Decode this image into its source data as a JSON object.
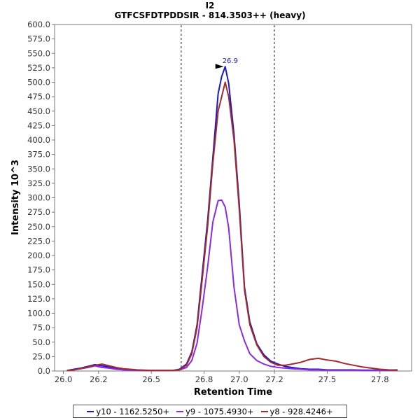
{
  "chart_data": {
    "type": "line",
    "title": "I2",
    "subtitle": "GTFCSFDTPDDSIR - 814.3503++ (heavy)",
    "xlabel": "Retention Time",
    "ylabel": "Intensity 10^3",
    "xlim": [
      25.95,
      27.98
    ],
    "ylim": [
      0,
      600
    ],
    "x_ticks": [
      {
        "value": 26.0,
        "label": "26.0"
      },
      {
        "value": 26.2,
        "label": "26.2"
      },
      {
        "value": 26.5,
        "label": "26.5"
      },
      {
        "value": 26.8,
        "label": "26.8"
      },
      {
        "value": 27.0,
        "label": "27.0"
      },
      {
        "value": 27.2,
        "label": "27.2"
      },
      {
        "value": 27.5,
        "label": "27.5"
      },
      {
        "value": 27.8,
        "label": "27.8"
      }
    ],
    "y_ticks": [
      {
        "value": 0,
        "label": "0.0"
      },
      {
        "value": 25,
        "label": "25.0"
      },
      {
        "value": 50,
        "label": "50.0"
      },
      {
        "value": 75,
        "label": "75.0"
      },
      {
        "value": 100,
        "label": "100.0"
      },
      {
        "value": 125,
        "label": "125.0"
      },
      {
        "value": 150,
        "label": "150.0"
      },
      {
        "value": 175,
        "label": "175.0"
      },
      {
        "value": 200,
        "label": "200.0"
      },
      {
        "value": 225,
        "label": "225.0"
      },
      {
        "value": 250,
        "label": "250.0"
      },
      {
        "value": 275,
        "label": "275.0"
      },
      {
        "value": 300,
        "label": "300.0"
      },
      {
        "value": 325,
        "label": "325.0"
      },
      {
        "value": 350,
        "label": "350.0"
      },
      {
        "value": 375,
        "label": "375.0"
      },
      {
        "value": 400,
        "label": "400.0"
      },
      {
        "value": 425,
        "label": "425.0"
      },
      {
        "value": 450,
        "label": "450.0"
      },
      {
        "value": 475,
        "label": "475.0"
      },
      {
        "value": 500,
        "label": "500.0"
      },
      {
        "value": 525,
        "label": "525.0"
      },
      {
        "value": 550,
        "label": "550.0"
      },
      {
        "value": 575,
        "label": "575.0"
      },
      {
        "value": 600,
        "label": "600.0"
      }
    ],
    "grid": false,
    "legend_position": "bottom",
    "boundaries": [
      26.67,
      27.2
    ],
    "peak_annotation": {
      "x": 26.92,
      "y": 527,
      "label": "26.9"
    },
    "series": [
      {
        "name": "y10 - 1162.5250+",
        "color": "#1818c8",
        "x": [
          26.02,
          26.06,
          26.1,
          26.14,
          26.18,
          26.22,
          26.26,
          26.3,
          26.34,
          26.38,
          26.42,
          26.46,
          26.5,
          26.54,
          26.58,
          26.62,
          26.66,
          26.7,
          26.73,
          26.76,
          26.79,
          26.82,
          26.85,
          26.88,
          26.9,
          26.92,
          26.94,
          26.97,
          27.0,
          27.03,
          27.06,
          27.1,
          27.14,
          27.18,
          27.22,
          27.26,
          27.3,
          27.35,
          27.4,
          27.45,
          27.5,
          27.55,
          27.6,
          27.65,
          27.7,
          27.75,
          27.8,
          27.85,
          27.9
        ],
        "y": [
          1,
          3,
          5,
          8,
          11,
          9,
          7,
          5,
          3,
          2,
          1.5,
          1,
          1,
          1,
          1,
          1,
          3,
          12,
          33,
          80,
          170,
          260,
          370,
          480,
          510,
          527,
          498,
          410,
          290,
          145,
          85,
          47,
          28,
          17,
          12,
          8,
          6,
          4,
          3,
          3,
          2,
          2,
          2,
          2,
          1.5,
          1.5,
          1.5,
          1.5,
          2
        ]
      },
      {
        "name": "y9 - 1075.4930+",
        "color": "#8a2be2",
        "x": [
          26.02,
          26.06,
          26.1,
          26.14,
          26.18,
          26.22,
          26.26,
          26.3,
          26.34,
          26.38,
          26.42,
          26.46,
          26.5,
          26.54,
          26.58,
          26.62,
          26.66,
          26.7,
          26.73,
          26.76,
          26.79,
          26.82,
          26.85,
          26.88,
          26.9,
          26.92,
          26.94,
          26.97,
          27.0,
          27.03,
          27.06,
          27.1,
          27.14,
          27.18,
          27.22,
          27.26,
          27.3,
          27.35,
          27.4,
          27.45,
          27.5,
          27.55,
          27.6,
          27.65,
          27.7,
          27.75,
          27.8,
          27.85,
          27.9
        ],
        "y": [
          1,
          2,
          4,
          6,
          9,
          6,
          5,
          3,
          2,
          1.5,
          1,
          1,
          1,
          1,
          1,
          1,
          2,
          6,
          18,
          48,
          110,
          180,
          258,
          295,
          296,
          284,
          248,
          145,
          80,
          52,
          30,
          18,
          12,
          8,
          6,
          5,
          4,
          3,
          2,
          2,
          1.5,
          1.5,
          1.5,
          1.5,
          1,
          1,
          1,
          1,
          1
        ]
      },
      {
        "name": "y8 - 928.4246+",
        "color": "#a52a2a",
        "x": [
          26.02,
          26.06,
          26.1,
          26.14,
          26.18,
          26.22,
          26.26,
          26.3,
          26.34,
          26.38,
          26.42,
          26.46,
          26.5,
          26.54,
          26.58,
          26.62,
          26.66,
          26.7,
          26.73,
          26.76,
          26.79,
          26.82,
          26.85,
          26.88,
          26.9,
          26.92,
          26.94,
          26.97,
          27.0,
          27.03,
          27.06,
          27.1,
          27.14,
          27.18,
          27.22,
          27.26,
          27.3,
          27.35,
          27.4,
          27.45,
          27.5,
          27.55,
          27.6,
          27.65,
          27.7,
          27.75,
          27.8,
          27.85,
          27.9
        ],
        "y": [
          1,
          2,
          4,
          7,
          10,
          12,
          9,
          6,
          4,
          3,
          2,
          1.5,
          1,
          1,
          1,
          1,
          2,
          10,
          30,
          75,
          160,
          250,
          360,
          450,
          475,
          500,
          475,
          400,
          280,
          140,
          80,
          45,
          25,
          15,
          10,
          10,
          12,
          15,
          20,
          22,
          19,
          17,
          13,
          10,
          7,
          5,
          3,
          2,
          1.5
        ]
      }
    ]
  }
}
